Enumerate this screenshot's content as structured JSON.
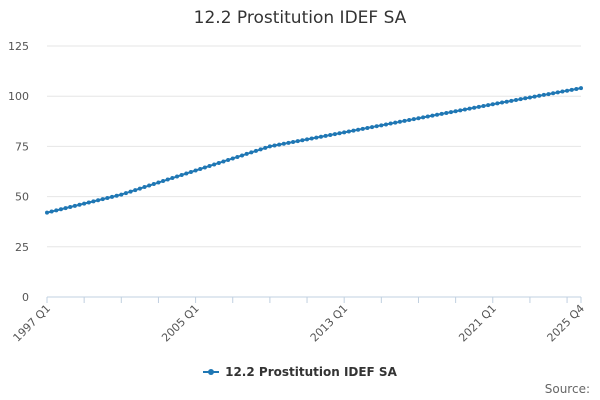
{
  "chart_data": {
    "type": "line",
    "title": "12.2 Prostitution IDEF SA",
    "xlabel": "",
    "ylabel": "",
    "x_range": [
      "1997 Q1",
      "2025 Q4"
    ],
    "x_tick_labels": [
      "1997 Q1",
      "2005 Q1",
      "2013 Q1",
      "2021 Q1",
      "2025 Q4"
    ],
    "ylim": [
      0,
      125
    ],
    "y_ticks": [
      0,
      25,
      50,
      75,
      100,
      125
    ],
    "grid": true,
    "legend_position": "bottom",
    "series": [
      {
        "name": "12.2 Prostitution IDEF SA",
        "color": "#1f77b4",
        "anchors": [
          {
            "q": "1997 Q1",
            "y": 42
          },
          {
            "q": "2001 Q1",
            "y": 51
          },
          {
            "q": "2005 Q1",
            "y": 63
          },
          {
            "q": "2009 Q1",
            "y": 75
          },
          {
            "q": "2013 Q1",
            "y": 82
          },
          {
            "q": "2017 Q1",
            "y": 89
          },
          {
            "q": "2021 Q1",
            "y": 96
          },
          {
            "q": "2025 Q4",
            "y": 104
          }
        ]
      }
    ]
  },
  "footer": {
    "source_label": "Source:"
  }
}
